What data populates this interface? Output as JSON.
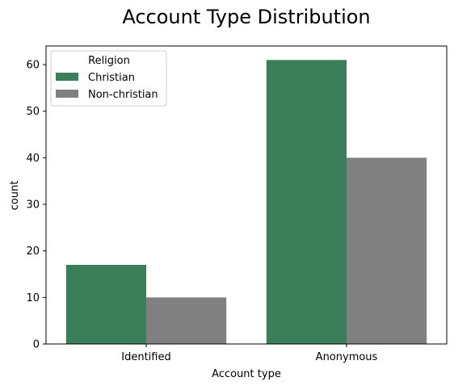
{
  "chart_data": {
    "type": "bar",
    "title": "Account Type Distribution",
    "xlabel": "Account type",
    "ylabel": "count",
    "categories": [
      "Identified",
      "Anonymous"
    ],
    "series": [
      {
        "name": "Christian",
        "color": "#3a7f59",
        "values": [
          17,
          61
        ]
      },
      {
        "name": "Non-christian",
        "color": "#808080",
        "values": [
          10,
          40
        ]
      }
    ],
    "ylim": [
      0,
      64
    ],
    "yticks": [
      0,
      10,
      20,
      30,
      40,
      50,
      60
    ],
    "grid": false,
    "legend": {
      "title": "Religion",
      "placement": "top-left"
    }
  }
}
